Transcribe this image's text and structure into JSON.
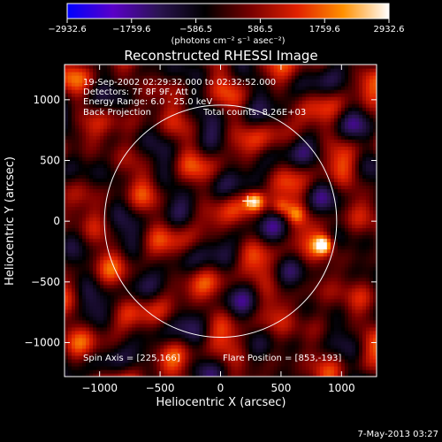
{
  "chart_data": {
    "type": "heatmap",
    "title": "Reconstructed RHESSI Image",
    "xlabel": "Heliocentric X (arcsec)",
    "ylabel": "Heliocentric Y (arcsec)",
    "xlim": [
      -1290,
      1290
    ],
    "ylim": [
      -1280,
      1290
    ],
    "xticks": [
      -1000,
      -500,
      0,
      500,
      1000
    ],
    "yticks": [
      -1000,
      -500,
      0,
      500,
      1000
    ],
    "xtick_labels": [
      "−1000",
      "−500",
      "0",
      "500",
      "1000"
    ],
    "ytick_labels": [
      "−1000",
      "−500",
      "0",
      "500",
      "1000"
    ],
    "colorbar": {
      "min": -2932.6,
      "max": 2932.6,
      "ticks": [
        -2932.6,
        -1759.6,
        -586.5,
        586.5,
        1759.6,
        2932.6
      ],
      "tick_labels": [
        "−2932.6",
        "−1759.6",
        "−586.5",
        "586.5",
        "1759.6",
        "2932.6"
      ],
      "units_label": "(photons cm⁻² s⁻¹ asec⁻²)",
      "colormap": [
        "#0000ff",
        "#5a00c8",
        "#2a1450",
        "#000000",
        "#780000",
        "#e02000",
        "#ff9000",
        "#ffffff"
      ]
    },
    "annotations": {
      "time_range": "19-Sep-2002 02:29:32.000 to 02:32:52.000",
      "detectors": "Detectors: 7F 8F 9F, Att 0",
      "energy_range": "Energy Range: 6.0 - 25.0 keV",
      "method": "Back Projection",
      "total_counts": "Total counts: 8.26E+03",
      "spin_axis": "Spin Axis = [225,166]",
      "flare_position": "Flare Position = [853,-193]"
    },
    "solar_limb_radius": 960,
    "spin_axis_marker": [
      225,
      166
    ],
    "bright_sources": [
      {
        "x": 853,
        "y": -193,
        "value": 2932.6
      },
      {
        "x": 280,
        "y": 170,
        "value": 2400
      },
      {
        "x": 500,
        "y": 120,
        "value": 1500
      },
      {
        "x": 620,
        "y": 60,
        "value": 1300
      }
    ]
  },
  "footer": {
    "date_stamp": "7-May-2013 03:27"
  }
}
